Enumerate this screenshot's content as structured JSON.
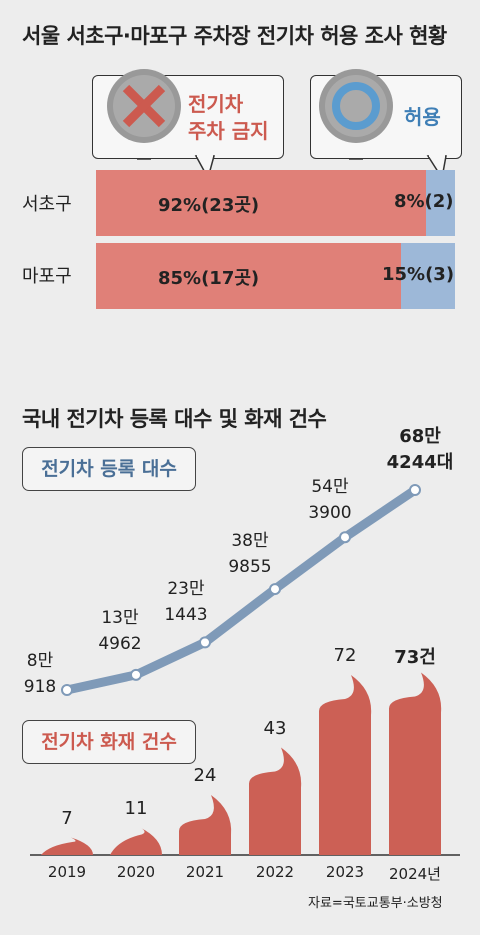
{
  "chart_data": [
    {
      "type": "bar",
      "title": "서울 서초구·마포구 주차장 전기차 허용 조사 현황",
      "legend": [
        "전기차\n주차 금지",
        "허용"
      ],
      "categories": [
        "서초구",
        "마포구"
      ],
      "series": [
        {
          "name": "전기차 주차 금지",
          "values": [
            92,
            85
          ],
          "labels": [
            "92%(23곳)",
            "85%(17곳)"
          ],
          "color": "#e08078"
        },
        {
          "name": "허용",
          "values": [
            8,
            15
          ],
          "labels": [
            "8%(2)",
            "15%(3)"
          ],
          "color": "#9db8d8"
        }
      ],
      "legend_labels": {
        "ban_line1": "전기차",
        "ban_line2": "주차 금지",
        "allow": "허용"
      }
    },
    {
      "type": "line+bar",
      "title": "국내 전기차 등록 대수 및 화재 건수",
      "categories": [
        "2019",
        "2020",
        "2021",
        "2022",
        "2023",
        "2024년"
      ],
      "series": [
        {
          "name": "전기차 등록 대수",
          "values": [
            89918,
            134962,
            231443,
            389855,
            543900,
            684244
          ],
          "labels_line1": [
            "8만",
            "13만",
            "23만",
            "38만",
            "54만",
            "68만"
          ],
          "labels_line2": [
            "918",
            "4962",
            "1443",
            "9855",
            "3900",
            "4244대"
          ],
          "color": "#7f9ab8"
        },
        {
          "name": "전기차 화재 건수",
          "values": [
            7,
            11,
            24,
            43,
            72,
            73
          ],
          "labels": [
            "7",
            "11",
            "24",
            "43",
            "72",
            "73건"
          ],
          "color": "#cc6055"
        }
      ],
      "source": "자료=국토교통부·소방청"
    }
  ]
}
